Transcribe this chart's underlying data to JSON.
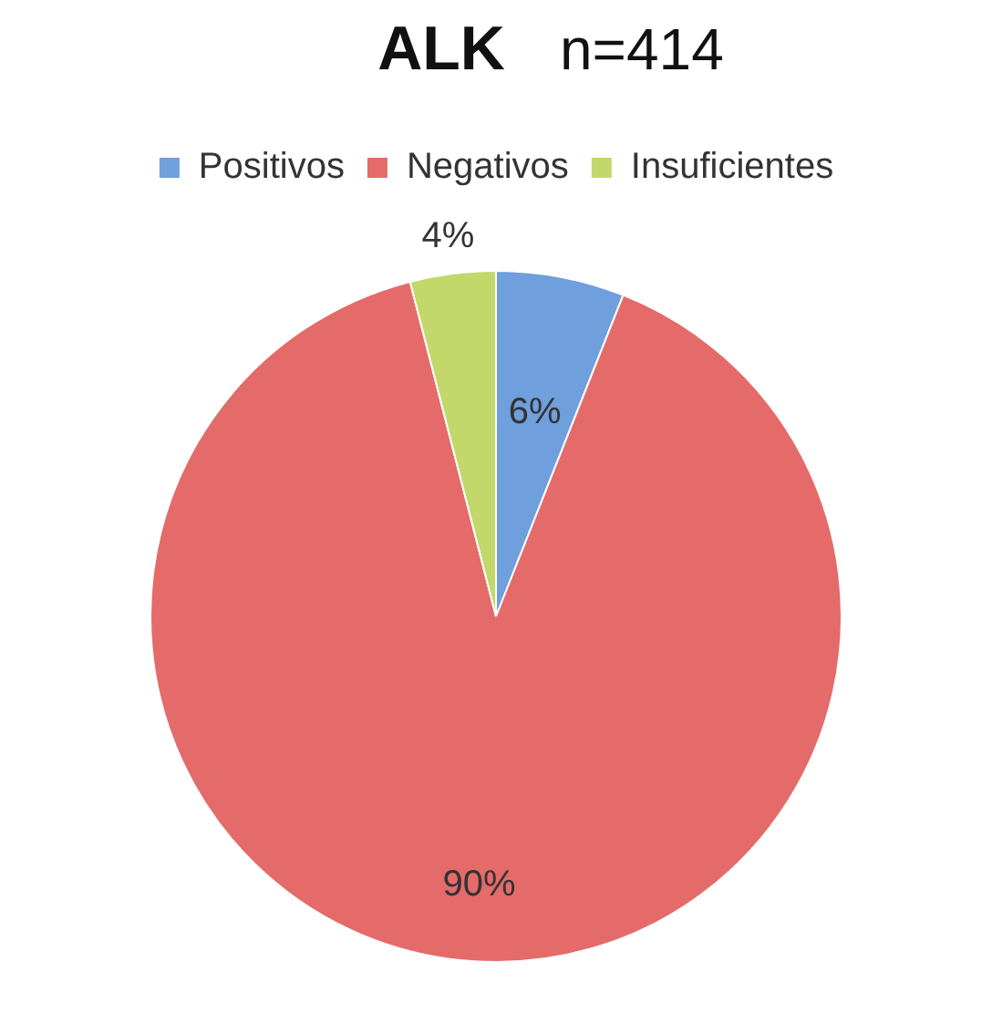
{
  "chart_data": {
    "type": "pie",
    "title": "ALK",
    "subtitle": "n=414",
    "categories": [
      "Positivos",
      "Negativos",
      "Insuficientes"
    ],
    "values": [
      6,
      90,
      4
    ],
    "colors": [
      "#6f9fdc",
      "#e46b69",
      "#c2d86a"
    ],
    "value_labels": [
      "6%",
      "90%",
      "4%"
    ],
    "legend": "top"
  }
}
